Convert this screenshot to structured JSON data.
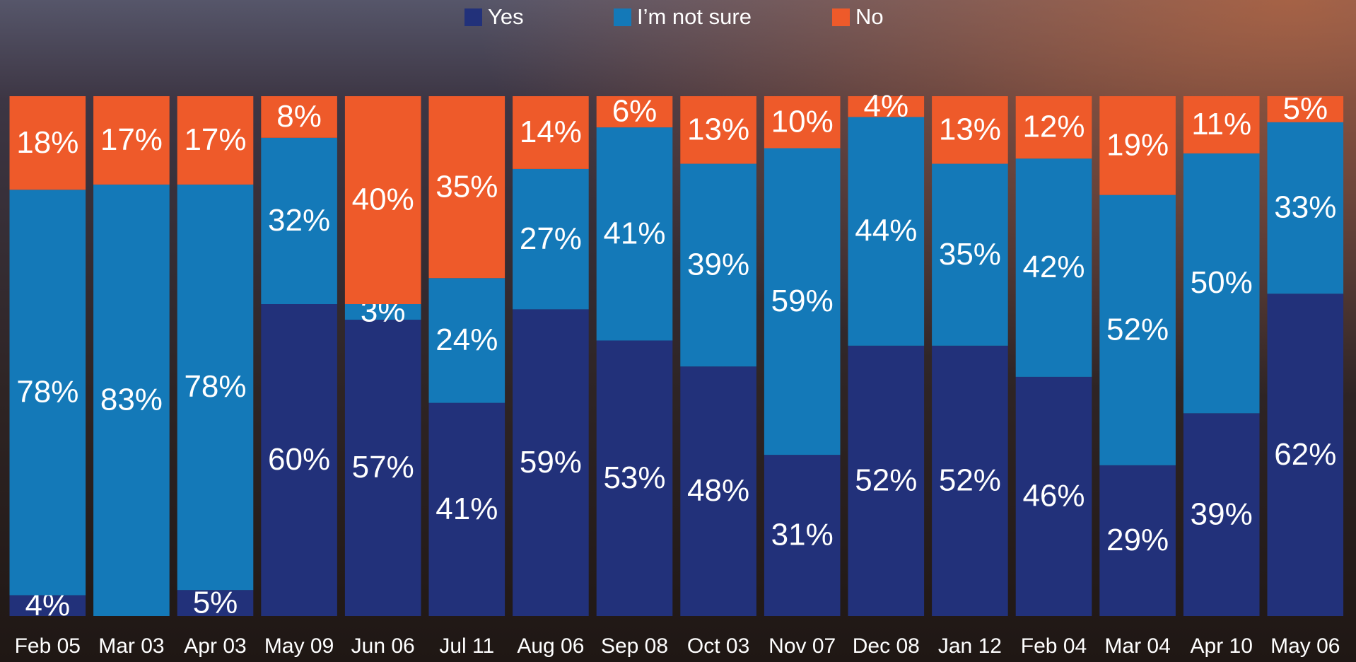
{
  "chart_data": {
    "type": "stacked-bar",
    "categories": [
      "Feb 05",
      "Mar 03",
      "Apr 03",
      "May 09",
      "Jun 06",
      "Jul 11",
      "Aug 06",
      "Sep 08",
      "Oct 03",
      "Nov 07",
      "Dec 08",
      "Jan 12",
      "Feb 04",
      "Mar 04",
      "Apr 10",
      "May 06"
    ],
    "series": [
      {
        "name": "Yes",
        "color": "#22317a",
        "values": [
          4,
          0,
          5,
          60,
          57,
          41,
          59,
          53,
          48,
          31,
          52,
          52,
          46,
          29,
          39,
          62
        ],
        "value_labels": [
          "4%",
          null,
          "5%",
          "60%",
          "57%",
          "41%",
          "59%",
          "53%",
          "48%",
          "31%",
          "52%",
          "52%",
          "46%",
          "29%",
          "39%",
          "62%"
        ]
      },
      {
        "name": "I’m not sure",
        "color": "#1479b8",
        "values": [
          78,
          83,
          78,
          32,
          3,
          24,
          27,
          41,
          39,
          59,
          44,
          35,
          42,
          52,
          50,
          33
        ],
        "value_labels": [
          "78%",
          "83%",
          "78%",
          "32%",
          "3%",
          "24%",
          "27%",
          "41%",
          "39%",
          "59%",
          "44%",
          "35%",
          "42%",
          "52%",
          "50%",
          "33%"
        ]
      },
      {
        "name": "No",
        "color": "#ee5a2a",
        "values": [
          18,
          17,
          17,
          8,
          40,
          35,
          14,
          6,
          13,
          10,
          4,
          13,
          12,
          19,
          11,
          5
        ],
        "value_labels": [
          "18%",
          "17%",
          "17%",
          "8%",
          "40%",
          "35%",
          "14%",
          "6%",
          "13%",
          "10%",
          "4%",
          "13%",
          "12%",
          "19%",
          "11%",
          "5%"
        ]
      }
    ],
    "ylim": [
      0,
      100
    ],
    "legend": "top"
  }
}
